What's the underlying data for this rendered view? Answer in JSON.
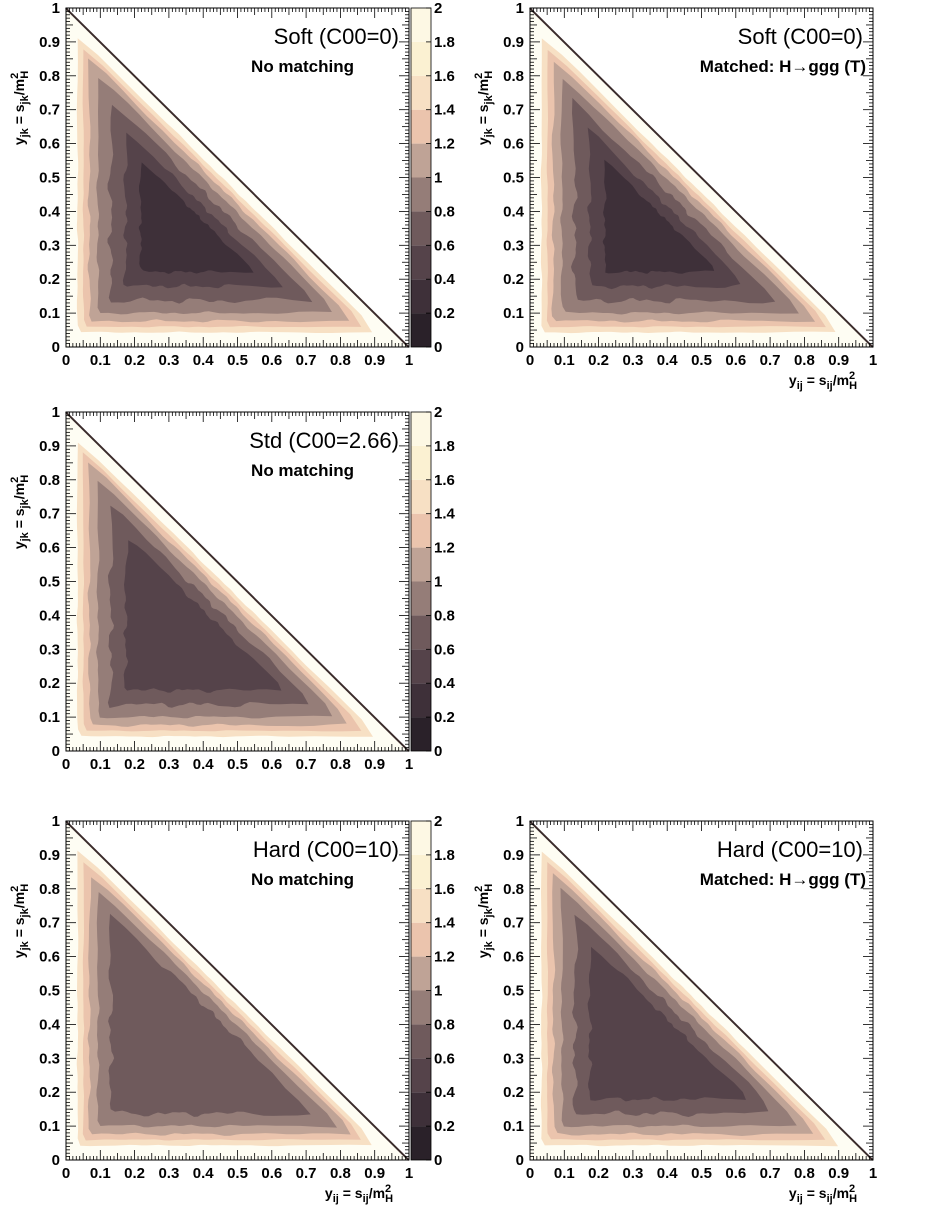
{
  "scale": {
    "levels": [
      0,
      0.2,
      0.4,
      0.6,
      0.8,
      1,
      1.2,
      1.4,
      1.6,
      1.8,
      2
    ],
    "colors": [
      "#2a2129",
      "#3e3039",
      "#55434a",
      "#6f5a5c",
      "#957d78",
      "#bfa396",
      "#ebc4ad",
      "#f7e0c4",
      "#fbf1d2",
      "#fdf8e4"
    ],
    "tick_labels": [
      "0",
      "0.2",
      "0.4",
      "0.6",
      "0.8",
      "1",
      "1.2",
      "1.4",
      "1.6",
      "1.8",
      "2"
    ],
    "background_color": "#fefdf3",
    "diagonal_color": "#3a2b2b"
  },
  "axes": {
    "x_ticks": [
      "0",
      "0.1",
      "0.2",
      "0.3",
      "0.4",
      "0.5",
      "0.6",
      "0.7",
      "0.8",
      "0.9",
      "1"
    ],
    "y_ticks": [
      "0",
      "0.1",
      "0.2",
      "0.3",
      "0.4",
      "0.5",
      "0.6",
      "0.7",
      "0.8",
      "0.9",
      "1"
    ],
    "xlabel": "y_ij = s_ij/m_H^2",
    "ylabel": "y_jk = s_jk/m_H^2",
    "xlim": [
      0,
      1
    ],
    "ylim": [
      0,
      1
    ]
  },
  "chart_data": [
    {
      "type": "heatmap",
      "title": "Soft (C00=0)",
      "subtitle": "No matching",
      "x": "y_ij",
      "y": "y_jk",
      "colorbar": true,
      "xlabel_shown": false,
      "peak_region_value_range": [
        0.4,
        0.6
      ],
      "contour_levels_shown": [
        0.4,
        0.6,
        0.8,
        1.0,
        1.2,
        1.4,
        1.6
      ]
    },
    {
      "type": "heatmap",
      "title": "Soft (C00=0)",
      "subtitle": "Matched: H→ggg (T)",
      "x": "y_ij",
      "y": "y_jk",
      "colorbar": false,
      "xlabel_shown": true,
      "peak_region_value_range": [
        0.6,
        0.8
      ],
      "contour_levels_shown": [
        0.4,
        0.6,
        0.8,
        1.0,
        1.2,
        1.4,
        1.6
      ]
    },
    {
      "type": "heatmap",
      "title": "Std (C00=2.66)",
      "subtitle": "No matching",
      "x": "y_ij",
      "y": "y_jk",
      "colorbar": true,
      "xlabel_shown": false,
      "peak_region_value_range": [
        0.6,
        0.8
      ],
      "contour_levels_shown": [
        0.6,
        0.8,
        1.0,
        1.2,
        1.4,
        1.6
      ]
    },
    {
      "type": "heatmap",
      "title": "Hard (C00=10)",
      "subtitle": "No matching",
      "x": "y_ij",
      "y": "y_jk",
      "colorbar": true,
      "xlabel_shown": true,
      "peak_region_value_range": [
        0.8,
        1.0
      ],
      "contour_levels_shown": [
        0.8,
        1.0,
        1.2,
        1.4,
        1.6
      ]
    },
    {
      "type": "heatmap",
      "title": "Hard (C00=10)",
      "subtitle": "Matched: H→ggg (T)",
      "x": "y_ij",
      "y": "y_jk",
      "colorbar": false,
      "xlabel_shown": true,
      "peak_region_value_range": [
        0.6,
        0.8
      ],
      "contour_levels_shown": [
        0.6,
        0.8,
        1.0,
        1.2,
        1.4,
        1.6
      ]
    }
  ]
}
